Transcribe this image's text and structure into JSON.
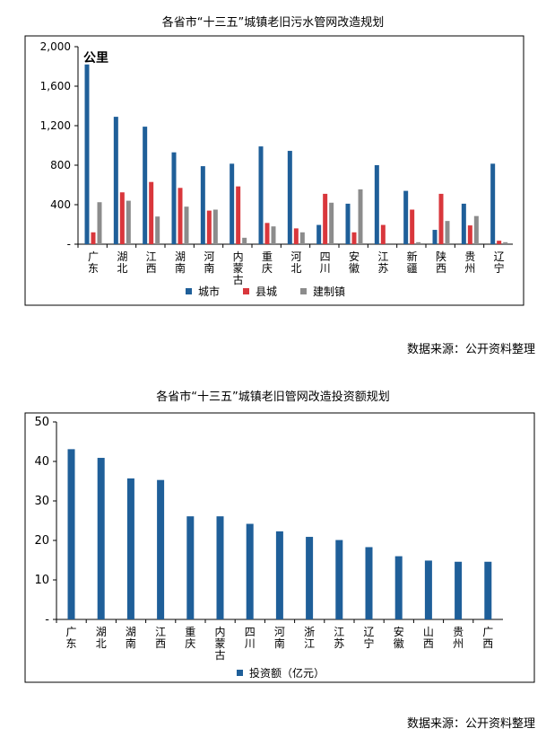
{
  "chart_data": [
    {
      "type": "bar",
      "title": "各省市“十三五”城镇老旧污水管网改造规划",
      "unit_label": "公里",
      "ylim": [
        0,
        2000
      ],
      "yticks": [
        "-",
        "400",
        "800",
        "1,200",
        "1,600",
        "2,000"
      ],
      "ytick_values": [
        0,
        400,
        800,
        1200,
        1600,
        2000
      ],
      "categories": [
        "广东",
        "湖北",
        "江西",
        "湖南",
        "河南",
        "内蒙古",
        "重庆",
        "河北",
        "四川",
        "安徽",
        "江苏",
        "新疆",
        "陕西",
        "贵州",
        "辽宁"
      ],
      "series": [
        {
          "name": "城市",
          "color": "#1f5f99",
          "values": [
            1820,
            1290,
            1190,
            930,
            790,
            815,
            990,
            945,
            195,
            410,
            800,
            540,
            145,
            410,
            815
          ]
        },
        {
          "name": "县城",
          "color": "#d9373c",
          "values": [
            120,
            525,
            630,
            570,
            340,
            585,
            215,
            160,
            510,
            120,
            195,
            350,
            510,
            190,
            35
          ]
        },
        {
          "name": "建制镇",
          "color": "#8c8c8c",
          "values": [
            425,
            440,
            280,
            380,
            350,
            65,
            180,
            120,
            420,
            555,
            0,
            20,
            235,
            285,
            20
          ]
        }
      ],
      "source": "数据来源：公开资料整理"
    },
    {
      "type": "bar",
      "title": "各省市“十三五”城镇老旧管网改造投资额规划",
      "ylim": [
        0,
        50
      ],
      "yticks": [
        "-",
        "10",
        "20",
        "30",
        "40",
        "50"
      ],
      "ytick_values": [
        0,
        10,
        20,
        30,
        40,
        50
      ],
      "categories": [
        "广东",
        "湖北",
        "湖南",
        "江西",
        "重庆",
        "内蒙古",
        "四川",
        "河南",
        "浙江",
        "江苏",
        "辽宁",
        "安徽",
        "山西",
        "贵州",
        "广西"
      ],
      "series": [
        {
          "name": "投资额（亿元）",
          "color": "#1f5f99",
          "values": [
            43.1,
            40.9,
            35.7,
            35.3,
            26.1,
            26.1,
            24.2,
            22.3,
            20.9,
            20.1,
            18.3,
            16.0,
            14.9,
            14.6,
            14.6
          ]
        }
      ],
      "source": "数据来源：公开资料整理"
    }
  ]
}
